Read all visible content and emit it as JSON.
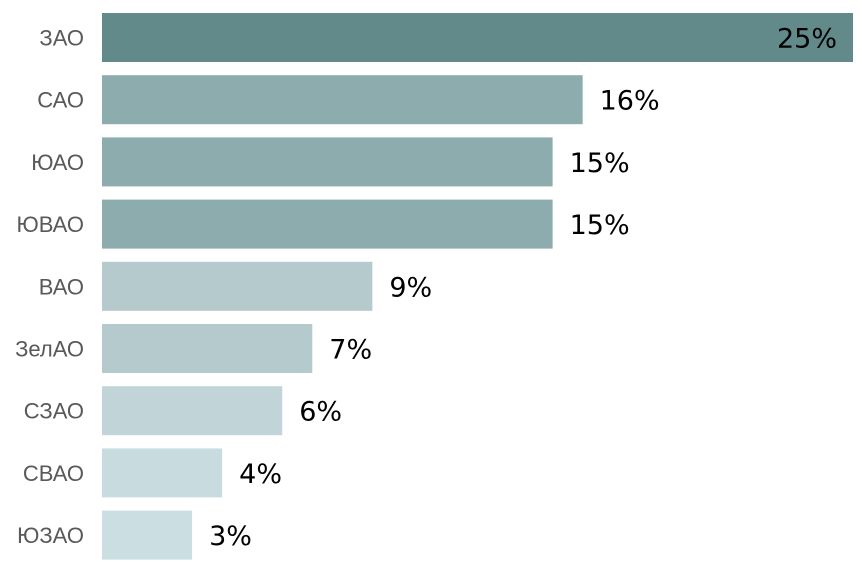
{
  "chart_data": {
    "type": "bar",
    "orientation": "horizontal",
    "categories": [
      "ЗАО",
      "САО",
      "ЮАО",
      "ЮВАО",
      "ВАО",
      "ЗелАО",
      "СЗАО",
      "СВАО",
      "ЮЗАО"
    ],
    "values": [
      25,
      16,
      15,
      15,
      9,
      7,
      6,
      4,
      3
    ],
    "value_labels": [
      "25%",
      "16%",
      "15%",
      "15%",
      "9%",
      "7%",
      "6%",
      "4%",
      "3%"
    ],
    "unit": "%",
    "title": "",
    "xlabel": "",
    "ylabel": "",
    "xlim": [
      0,
      25
    ],
    "grid": false,
    "legend": "none",
    "colors": [
      "#628a8b",
      "#8dacae",
      "#8dacae",
      "#8dacae",
      "#b4cacc",
      "#b4cacc",
      "#c1d5d8",
      "#c8dcdf",
      "#cbdfe2"
    ]
  }
}
